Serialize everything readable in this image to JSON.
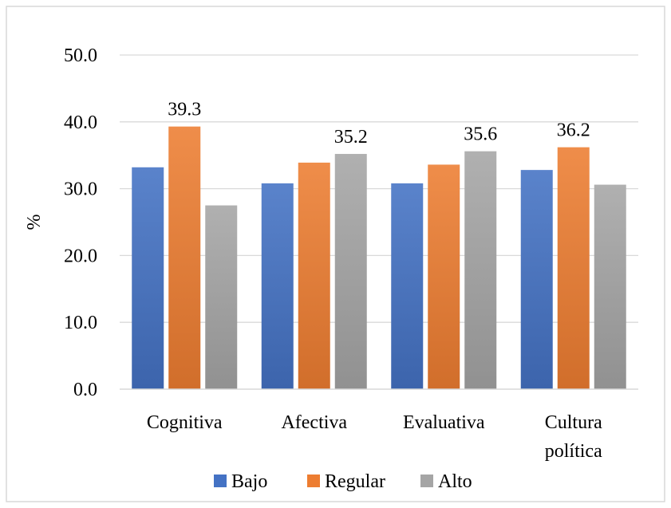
{
  "chart_data": {
    "type": "bar",
    "title": "",
    "xlabel": "",
    "ylabel": "%",
    "ylim": [
      0,
      50
    ],
    "y_ticks": [
      "0.0",
      "10.0",
      "20.0",
      "30.0",
      "40.0",
      "50.0"
    ],
    "grid": "horizontal",
    "legend_position": "bottom",
    "categories": [
      [
        "Cognitiva"
      ],
      [
        "Afectiva"
      ],
      [
        "Evaluativa"
      ],
      [
        "Cultura",
        "política"
      ]
    ],
    "series": [
      {
        "name": "Bajo",
        "color": "#4472C4",
        "values": [
          33.2,
          30.8,
          30.8,
          32.8
        ]
      },
      {
        "name": "Regular",
        "color": "#ED7D31",
        "values": [
          39.3,
          33.9,
          33.6,
          36.2
        ]
      },
      {
        "name": "Alto",
        "color": "#A5A5A5",
        "values": [
          27.5,
          35.2,
          35.6,
          30.6
        ]
      }
    ],
    "data_labels": [
      {
        "series": 1,
        "category": 0,
        "text": "39.3"
      },
      {
        "series": 2,
        "category": 1,
        "text": "35.2"
      },
      {
        "series": 2,
        "category": 2,
        "text": "35.6"
      },
      {
        "series": 1,
        "category": 3,
        "text": "36.2"
      }
    ]
  }
}
